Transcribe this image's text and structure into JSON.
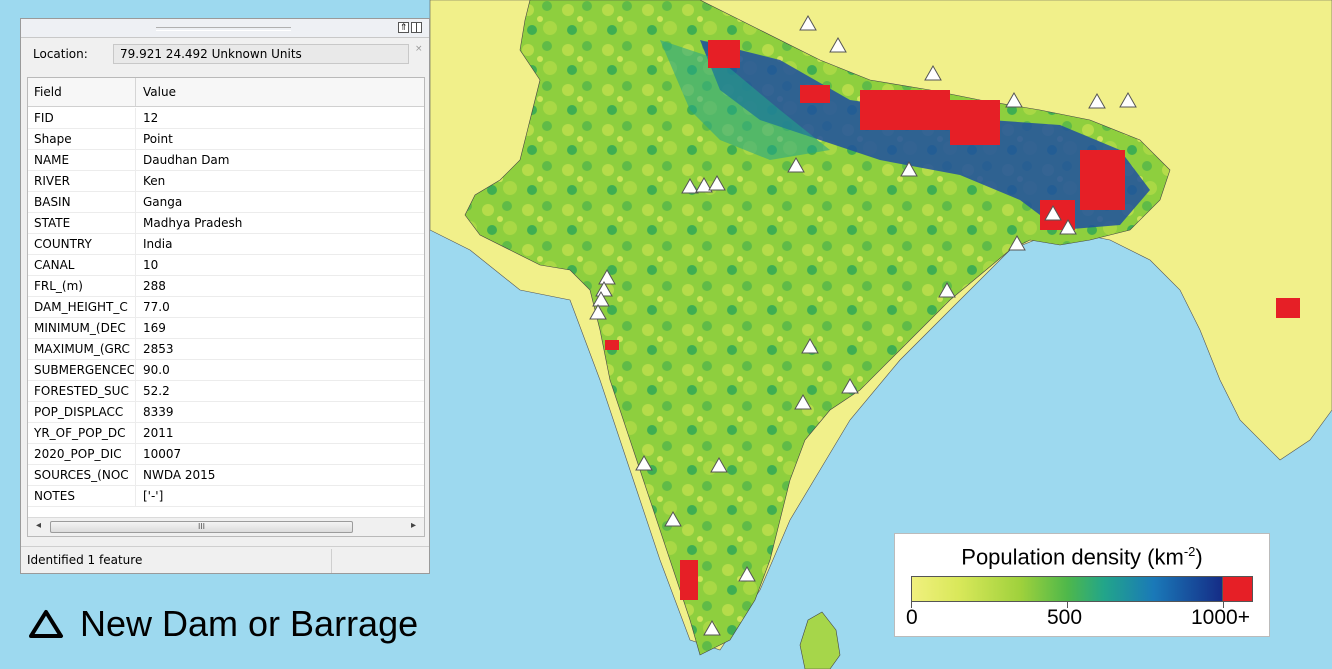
{
  "map": {
    "dam_markers_count": 36,
    "colors": {
      "ocean": "#9dd9ef",
      "outside_land": "#f1f08a",
      "density_low": "#f0f07e",
      "density_mid": "#4fb84a",
      "density_high": "#152c86",
      "density_max": "#e61f26",
      "marker_fill": "#ffffff"
    }
  },
  "identify_panel": {
    "titlebar_buttons": [
      "⇑",
      "|"
    ],
    "location_label": "Location:",
    "location_value": "79.921  24.492 Unknown Units",
    "columns": [
      "Field",
      "Value"
    ],
    "rows": [
      {
        "field": "FID",
        "value": "12"
      },
      {
        "field": "Shape",
        "value": "Point"
      },
      {
        "field": "NAME",
        "value": "Daudhan Dam"
      },
      {
        "field": "RIVER",
        "value": "Ken"
      },
      {
        "field": "BASIN",
        "value": "Ganga"
      },
      {
        "field": "STATE",
        "value": "Madhya Pradesh"
      },
      {
        "field": "COUNTRY",
        "value": "India"
      },
      {
        "field": "CANAL",
        "value": "10"
      },
      {
        "field": "FRL_(m)",
        "value": "288"
      },
      {
        "field": "DAM_HEIGHT_C",
        "value": "77.0"
      },
      {
        "field": "MINIMUM_(DEC",
        "value": "169"
      },
      {
        "field": "MAXIMUM_(GRC",
        "value": "2853"
      },
      {
        "field": "SUBMERGENCEC",
        "value": "90.0"
      },
      {
        "field": "FORESTED_SUC",
        "value": "52.2"
      },
      {
        "field": "POP_DISPLACC",
        "value": "8339"
      },
      {
        "field": "YR_OF_POP_DC",
        "value": "2011"
      },
      {
        "field": "2020_POP_DIC",
        "value": "10007"
      },
      {
        "field": "SOURCES_(NOC",
        "value": "NWDA 2015"
      },
      {
        "field": "NOTES",
        "value": "['-']"
      }
    ],
    "scroll_left": "◂",
    "scroll_right": "▸",
    "scroll_thumb": "III",
    "status": "Identified 1 feature"
  },
  "legend_dam": {
    "label": "New Dam or Barrage",
    "icon": "triangle-outline-icon"
  },
  "legend_density": {
    "title": "Population density (km",
    "title_sup": "-2",
    "title_end": ")",
    "labels": [
      "0",
      "500",
      "1000+"
    ]
  }
}
